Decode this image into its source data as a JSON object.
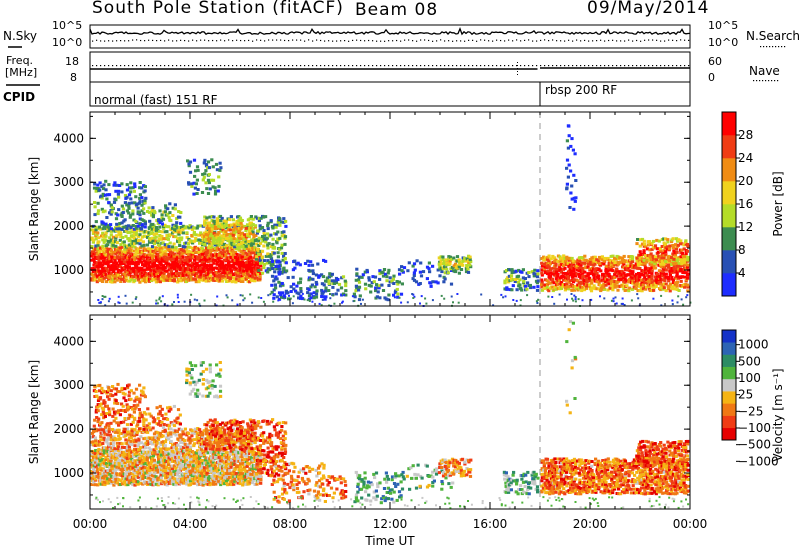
{
  "header": {
    "station": "South Pole Station (fitACF)",
    "beam": "Beam 08",
    "date": "09/May/2014"
  },
  "top_panels": {
    "noise_left_label": "N.Sky",
    "noise_right_label": "N.Search",
    "noise_ticks_left": [
      "10^5",
      "10^0"
    ],
    "noise_ticks_right": [
      "10^5",
      "10^0"
    ],
    "freq_label_line1": "Freq.",
    "freq_label_line2": "[MHz]",
    "freq_ticks": [
      "18",
      "8"
    ],
    "nave_label": "Nave",
    "nave_ticks": [
      "60",
      "0"
    ],
    "cpid_label": "CPID",
    "cpid_segments": [
      {
        "label": "normal (fast) 151 RF",
        "start_hour": 0
      },
      {
        "label": "rbsp 200 RF",
        "start_hour": 18
      }
    ]
  },
  "chart_data": [
    {
      "type": "heatmap",
      "title": "",
      "xlabel": "Time UT",
      "ylabel": "Slant Range [km]",
      "x_ticks": [
        "00:00",
        "04:00",
        "08:00",
        "12:00",
        "16:00",
        "20:00",
        "00:00"
      ],
      "x_range_hours": [
        0,
        24
      ],
      "y_ticks": [
        "1000",
        "2000",
        "3000",
        "4000"
      ],
      "ylim": [
        180,
        4600
      ],
      "colorbar_label": "Power [dB]",
      "colorbar_ticks": [
        "4",
        "8",
        "12",
        "16",
        "20",
        "24",
        "28"
      ],
      "colorbar_colors": [
        "#1e2dff",
        "#2850b4",
        "#3c8c50",
        "#b4dc28",
        "#f0d21e",
        "#f08c14",
        "#f03c14",
        "#ff0000"
      ],
      "marker_hour": 18
    },
    {
      "type": "heatmap",
      "title": "",
      "xlabel": "Time UT",
      "ylabel": "Slant Range [km]",
      "x_ticks": [
        "00:00",
        "04:00",
        "08:00",
        "12:00",
        "16:00",
        "20:00",
        "00:00"
      ],
      "x_range_hours": [
        0,
        24
      ],
      "y_ticks": [
        "1000",
        "2000",
        "3000",
        "4000"
      ],
      "ylim": [
        180,
        4600
      ],
      "colorbar_label": "Velocity [m s⁻¹]",
      "colorbar_ticks": [
        "1000",
        "500",
        "100",
        "25",
        "−25",
        "−100",
        "−500",
        "−1000"
      ],
      "colorbar_colors": [
        "#1432c8",
        "#2d64b4",
        "#2d8c64",
        "#50b43c",
        "#c8c8c8",
        "#f5b414",
        "#f07814",
        "#f03c14",
        "#e60000"
      ],
      "marker_hour": 18
    }
  ]
}
